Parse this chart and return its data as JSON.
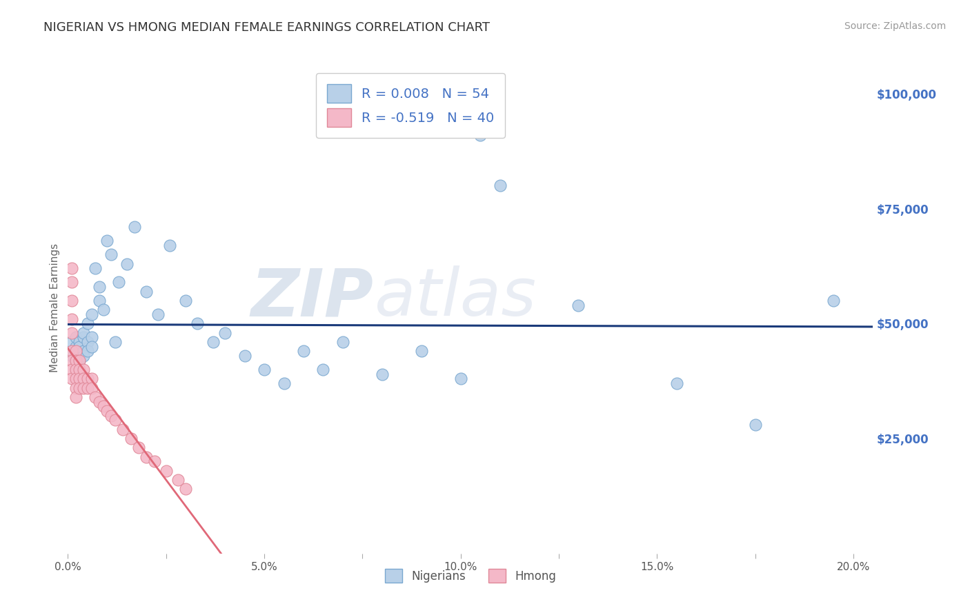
{
  "title": "NIGERIAN VS HMONG MEDIAN FEMALE EARNINGS CORRELATION CHART",
  "source_text": "Source: ZipAtlas.com",
  "ylabel": "Median Female Earnings",
  "xlim": [
    0.0,
    0.205
  ],
  "ylim": [
    0,
    107000
  ],
  "yticks": [
    0,
    25000,
    50000,
    75000,
    100000
  ],
  "ytick_labels": [
    "",
    "$25,000",
    "$50,000",
    "$75,000",
    "$100,000"
  ],
  "xtick_labels": [
    "0.0%",
    "",
    "5.0%",
    "",
    "10.0%",
    "",
    "15.0%",
    "",
    "20.0%"
  ],
  "xticks": [
    0.0,
    0.025,
    0.05,
    0.075,
    0.1,
    0.125,
    0.15,
    0.175,
    0.2
  ],
  "background_color": "#ffffff",
  "plot_bg_color": "#ffffff",
  "grid_color": "#c8c8c8",
  "title_color": "#333333",
  "title_fontsize": 13,
  "axis_label_color": "#666666",
  "ytick_color": "#4472c4",
  "xtick_color": "#555555",
  "nigerian_color": "#b8d0e8",
  "nigerian_edge_color": "#7aa8d0",
  "hmong_color": "#f4b8c8",
  "hmong_edge_color": "#e08898",
  "nigerian_line_color": "#1a3a7a",
  "hmong_line_color": "#e06878",
  "R_nigerian": 0.008,
  "N_nigerian": 54,
  "R_hmong": -0.519,
  "N_hmong": 40,
  "nigerians_x": [
    0.001,
    0.001,
    0.001,
    0.002,
    0.002,
    0.002,
    0.002,
    0.003,
    0.003,
    0.003,
    0.003,
    0.003,
    0.004,
    0.004,
    0.004,
    0.004,
    0.005,
    0.005,
    0.005,
    0.006,
    0.006,
    0.006,
    0.007,
    0.008,
    0.008,
    0.009,
    0.01,
    0.011,
    0.012,
    0.013,
    0.015,
    0.017,
    0.02,
    0.023,
    0.026,
    0.03,
    0.033,
    0.037,
    0.04,
    0.045,
    0.05,
    0.055,
    0.06,
    0.065,
    0.07,
    0.08,
    0.09,
    0.1,
    0.105,
    0.11,
    0.13,
    0.155,
    0.175,
    0.195
  ],
  "nigerians_y": [
    44000,
    43000,
    46000,
    45000,
    47000,
    43000,
    41000,
    44000,
    46000,
    43000,
    42000,
    45000,
    47000,
    44000,
    48000,
    43000,
    46000,
    50000,
    44000,
    52000,
    47000,
    45000,
    62000,
    55000,
    58000,
    53000,
    68000,
    65000,
    46000,
    59000,
    63000,
    71000,
    57000,
    52000,
    67000,
    55000,
    50000,
    46000,
    48000,
    43000,
    40000,
    37000,
    44000,
    40000,
    46000,
    39000,
    44000,
    38000,
    91000,
    80000,
    54000,
    37000,
    28000,
    55000
  ],
  "hmong_x": [
    0.001,
    0.001,
    0.001,
    0.001,
    0.001,
    0.001,
    0.001,
    0.001,
    0.001,
    0.002,
    0.002,
    0.002,
    0.002,
    0.002,
    0.002,
    0.003,
    0.003,
    0.003,
    0.003,
    0.004,
    0.004,
    0.004,
    0.005,
    0.005,
    0.006,
    0.006,
    0.007,
    0.008,
    0.009,
    0.01,
    0.011,
    0.012,
    0.014,
    0.016,
    0.018,
    0.02,
    0.022,
    0.025,
    0.028,
    0.03
  ],
  "hmong_y": [
    62000,
    59000,
    55000,
    51000,
    48000,
    44000,
    42000,
    40000,
    38000,
    44000,
    42000,
    40000,
    38000,
    36000,
    34000,
    42000,
    40000,
    38000,
    36000,
    40000,
    38000,
    36000,
    38000,
    36000,
    38000,
    36000,
    34000,
    33000,
    32000,
    31000,
    30000,
    29000,
    27000,
    25000,
    23000,
    21000,
    20000,
    18000,
    16000,
    14000
  ],
  "watermark_text_1": "ZIP",
  "watermark_text_2": "atlas",
  "legend_label_nigerian": "Nigerians",
  "legend_label_hmong": "Hmong"
}
